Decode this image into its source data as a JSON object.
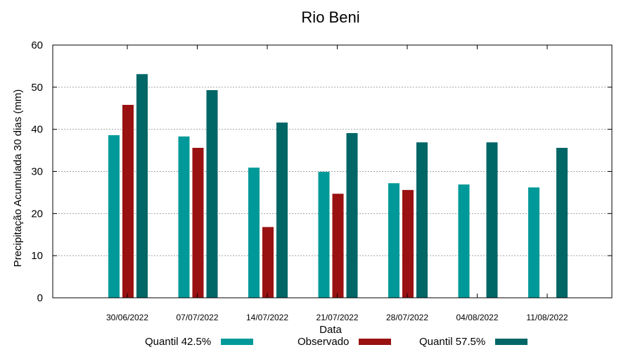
{
  "chart_data": {
    "type": "bar",
    "title": "Rio Beni",
    "xlabel": "Data",
    "ylabel": "Precipitação Acumulada 30 dias (mm)",
    "categories": [
      "30/06/2022",
      "07/07/2022",
      "14/07/2022",
      "21/07/2022",
      "28/07/2022",
      "04/08/2022",
      "11/08/2022"
    ],
    "ylim": [
      0,
      60
    ],
    "yticks": [
      0,
      10,
      20,
      30,
      40,
      50,
      60
    ],
    "grid": true,
    "legend_position": "bottom",
    "series": [
      {
        "name": "Quantil 42.5%",
        "color": "#009999",
        "values": [
          38.6,
          38.3,
          30.9,
          29.9,
          27.2,
          26.9,
          26.2
        ]
      },
      {
        "name": "Observado",
        "color": "#991111",
        "values": [
          45.8,
          35.6,
          16.8,
          24.7,
          25.6,
          null,
          null
        ]
      },
      {
        "name": "Quantil 57.5%",
        "color": "#006666",
        "values": [
          53.1,
          49.3,
          41.6,
          39.1,
          36.9,
          36.9,
          35.6
        ]
      }
    ]
  }
}
